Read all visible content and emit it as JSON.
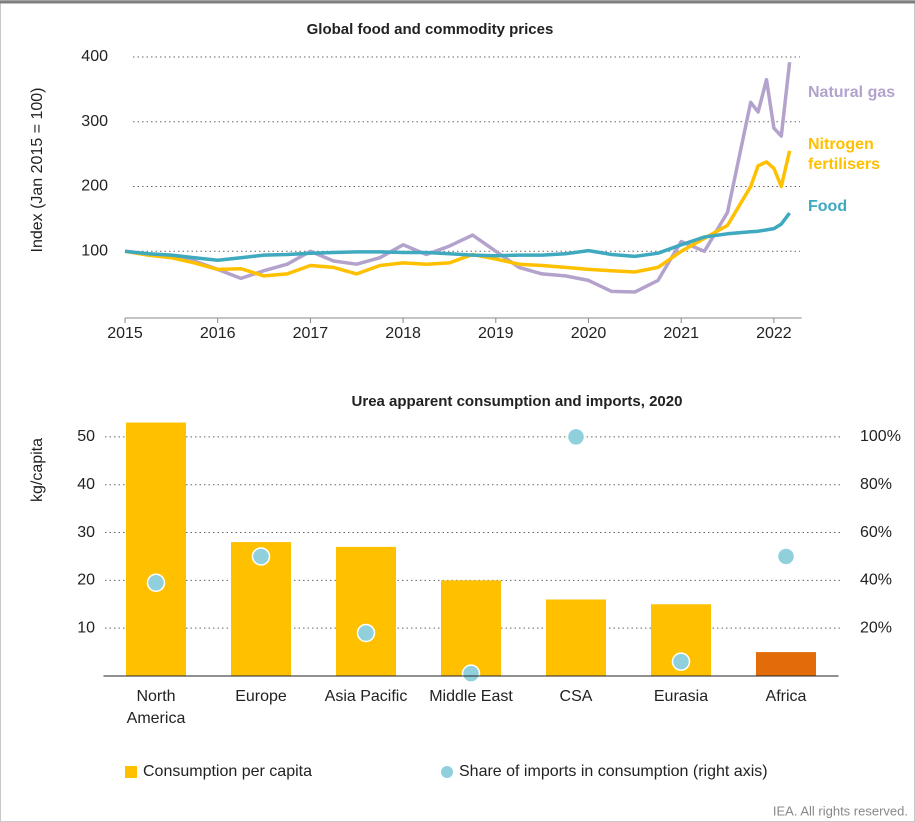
{
  "chart_data": [
    {
      "type": "line",
      "title": "Global food and commodity prices",
      "y_label": "Index (Jan 2015 = 100)",
      "x": [
        2015,
        2015.25,
        2015.5,
        2015.75,
        2016,
        2016.25,
        2016.5,
        2016.75,
        2017,
        2017.25,
        2017.5,
        2017.75,
        2018,
        2018.25,
        2018.5,
        2018.75,
        2019,
        2019.25,
        2019.5,
        2019.75,
        2020,
        2020.25,
        2020.5,
        2020.75,
        2021,
        2021.25,
        2021.5,
        2021.75,
        2021.83,
        2021.92,
        2022,
        2022.08,
        2022.17
      ],
      "series": [
        {
          "name": "Natural gas",
          "color": "#b3a3cc",
          "values": [
            100,
            95,
            92,
            85,
            72,
            58,
            70,
            80,
            100,
            85,
            80,
            90,
            110,
            95,
            108,
            125,
            100,
            75,
            65,
            62,
            55,
            38,
            37,
            55,
            115,
            100,
            160,
            330,
            315,
            365,
            290,
            278,
            392
          ]
        },
        {
          "name": "Nitrogen fertilisers",
          "color": "#ffc000",
          "values": [
            100,
            94,
            90,
            82,
            72,
            73,
            62,
            65,
            78,
            75,
            65,
            78,
            82,
            80,
            82,
            95,
            88,
            80,
            78,
            75,
            72,
            70,
            68,
            75,
            100,
            120,
            140,
            200,
            232,
            238,
            228,
            200,
            255
          ]
        },
        {
          "name": "Food",
          "color": "#3fa9bf",
          "values": [
            100,
            96,
            94,
            90,
            86,
            90,
            94,
            95,
            97,
            98,
            99,
            99,
            98,
            98,
            96,
            94,
            93,
            94,
            94,
            96,
            101,
            95,
            92,
            97,
            110,
            122,
            127,
            130,
            131,
            133,
            135,
            142,
            159
          ]
        }
      ],
      "xlim": [
        2015,
        2022.3
      ],
      "xticks": [
        2015,
        2016,
        2017,
        2018,
        2019,
        2020,
        2021,
        2022
      ],
      "ylim": [
        0,
        400
      ],
      "yticks": [
        100,
        200,
        300,
        400
      ],
      "grid": true
    },
    {
      "type": "bar",
      "title": "Urea apparent consumption and imports, 2020",
      "y_label": "kg/capita",
      "categories": [
        "North America",
        "Europe",
        "Asia Pacific",
        "Middle East",
        "CSA",
        "Eurasia",
        "Africa"
      ],
      "series": [
        {
          "name": "Consumption per capita",
          "color": "#ffc000",
          "colors": [
            "#ffc000",
            "#ffc000",
            "#ffc000",
            "#ffc000",
            "#ffc000",
            "#ffc000",
            "#e36c0a"
          ],
          "values": [
            53,
            28,
            27,
            20,
            16,
            15,
            5
          ]
        },
        {
          "name": "Share of imports in consumption (right axis)",
          "type": "scatter",
          "axis": "y2",
          "color": "#8fd0dc",
          "values": [
            39,
            50,
            18,
            1,
            100,
            6,
            50
          ]
        }
      ],
      "ylim": [
        0,
        55
      ],
      "yticks": [
        10,
        20,
        30,
        40,
        50
      ],
      "y2lim": [
        0,
        110
      ],
      "y2ticks": [
        {
          "value": 20,
          "label": "20%"
        },
        {
          "value": 40,
          "label": "40%"
        },
        {
          "value": 60,
          "label": "60%"
        },
        {
          "value": 80,
          "label": "80%"
        },
        {
          "value": 100,
          "label": "100%"
        }
      ],
      "grid": true,
      "legend": "bottom"
    }
  ],
  "footer": "IEA. All rights reserved."
}
